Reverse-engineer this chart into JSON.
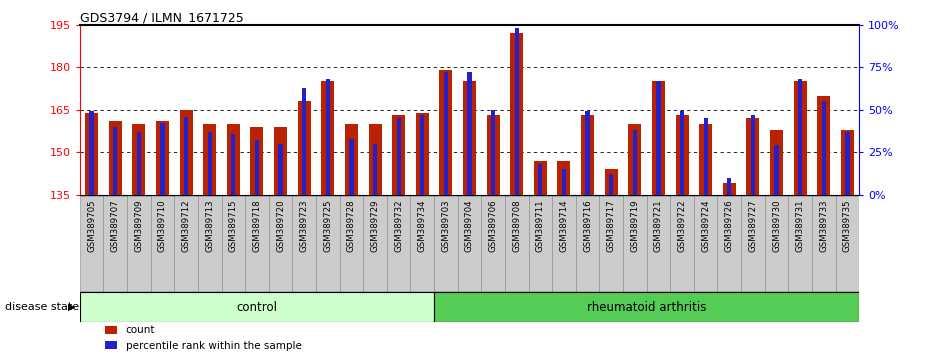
{
  "title": "GDS3794 / ILMN_1671725",
  "samples": [
    "GSM389705",
    "GSM389707",
    "GSM389709",
    "GSM389710",
    "GSM389712",
    "GSM389713",
    "GSM389715",
    "GSM389718",
    "GSM389720",
    "GSM389723",
    "GSM389725",
    "GSM389728",
    "GSM389729",
    "GSM389732",
    "GSM389734",
    "GSM389703",
    "GSM389704",
    "GSM389706",
    "GSM389708",
    "GSM389711",
    "GSM389714",
    "GSM389716",
    "GSM389717",
    "GSM389719",
    "GSM389721",
    "GSM389722",
    "GSM389724",
    "GSM389726",
    "GSM389727",
    "GSM389730",
    "GSM389731",
    "GSM389733",
    "GSM389735"
  ],
  "counts": [
    164,
    161,
    160,
    161,
    165,
    160,
    160,
    159,
    159,
    168,
    175,
    160,
    160,
    163,
    164,
    179,
    175,
    163,
    192,
    147,
    147,
    163,
    144,
    160,
    175,
    163,
    160,
    139,
    162,
    158,
    175,
    170,
    158
  ],
  "percentiles": [
    49,
    40,
    37,
    42,
    46,
    37,
    36,
    32,
    30,
    63,
    68,
    33,
    30,
    45,
    47,
    72,
    72,
    50,
    98,
    18,
    15,
    49,
    12,
    38,
    67,
    49,
    45,
    10,
    47,
    29,
    68,
    55,
    37
  ],
  "n_control": 15,
  "ylim_left": [
    135,
    195
  ],
  "ylim_right": [
    0,
    100
  ],
  "yticks_left": [
    135,
    150,
    165,
    180,
    195
  ],
  "yticks_right": [
    0,
    25,
    50,
    75,
    100
  ],
  "control_label": "control",
  "disease_label": "rheumatoid arthritis",
  "disease_state_label": "disease state",
  "bar_color_red": "#BB2200",
  "bar_color_blue": "#2222CC",
  "control_bg_light": "#CCFFCC",
  "disease_bg": "#55CC55",
  "bar_width": 0.55,
  "blue_bar_width": 0.18
}
